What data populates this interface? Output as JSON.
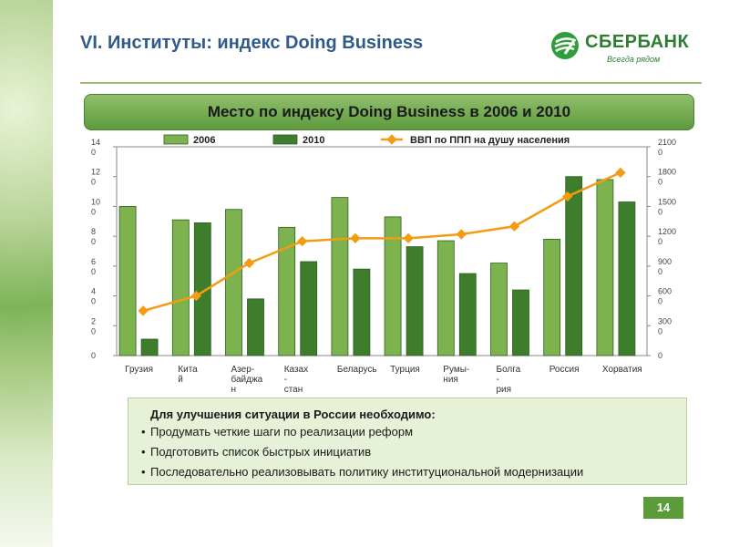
{
  "header": {
    "title": "VI. Институты: индекс Doing Business",
    "logo_text": "СБЕРБАНК",
    "logo_slogan": "Всегда рядом"
  },
  "banner": {
    "text": "Место по индексу Doing Business в 2006 и 2010"
  },
  "chart_data": {
    "type": "bar",
    "title": "Место по индексу Doing Business в 2006 и 2010",
    "categories": [
      [
        "Грузия"
      ],
      [
        "Кита",
        "й"
      ],
      [
        "Азер-",
        "байджа",
        "н"
      ],
      [
        "Казах",
        "-",
        "стан"
      ],
      [
        "Беларусь"
      ],
      [
        "Турция"
      ],
      [
        "Румы-",
        "ния"
      ],
      [
        "Болга",
        "-",
        "рия"
      ],
      [
        "Россия"
      ],
      [
        "Хорватия"
      ]
    ],
    "series": [
      {
        "name": "2006",
        "type": "bar",
        "axis": "left",
        "color": "#7db34f",
        "values": [
          100,
          91,
          98,
          86,
          106,
          93,
          77,
          62,
          78,
          118
        ]
      },
      {
        "name": "2010",
        "type": "bar",
        "axis": "left",
        "color": "#3d7d2c",
        "values": [
          11,
          89,
          38,
          63,
          58,
          73,
          55,
          44,
          120,
          103
        ]
      },
      {
        "name": "ВВП по ППП на душу населения",
        "type": "line",
        "axis": "right",
        "color": "#f39c12",
        "values": [
          4500,
          6000,
          9300,
          11500,
          11800,
          11800,
          12200,
          13000,
          16000,
          18400
        ]
      }
    ],
    "y_left": {
      "min": 0,
      "max": 140,
      "ticks": [
        [
          "0"
        ],
        [
          "2",
          "0"
        ],
        [
          "4",
          "0"
        ],
        [
          "6",
          "0"
        ],
        [
          "8",
          "0"
        ],
        [
          "10",
          "0"
        ],
        [
          "12",
          "0"
        ],
        [
          "14",
          "0"
        ]
      ]
    },
    "y_right": {
      "min": 0,
      "max": 21000,
      "ticks": [
        [
          "0"
        ],
        [
          "300",
          "0"
        ],
        [
          "600",
          "0"
        ],
        [
          "900",
          "0"
        ],
        [
          "1200",
          "0"
        ],
        [
          "1500",
          "0"
        ],
        [
          "1800",
          "0"
        ],
        [
          "2100",
          "0"
        ]
      ]
    },
    "legend_position": "top",
    "grid": false
  },
  "box": {
    "title": "Для улучшения ситуации в России необходимо:",
    "items": [
      "Продумать четкие шаги по реализации реформ",
      "Подготовить список быстрых инициатив",
      "Последовательно реализовывать политику институциональной модернизации"
    ]
  },
  "page_number": "14"
}
